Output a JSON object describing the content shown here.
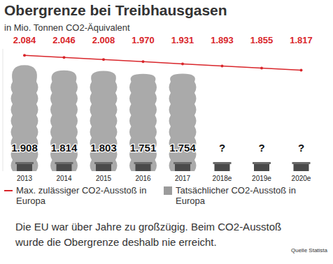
{
  "chart_data": {
    "type": "bar",
    "title": "Obergrenze bei Treibhausgasen",
    "subtitle": "in Mio. Tonnen CO2-Äquivalent",
    "categories": [
      "2013",
      "2014",
      "2015",
      "2016",
      "2017",
      "2018e",
      "2019e",
      "2020e"
    ],
    "series": [
      {
        "name": "Max. zulässiger CO2-Ausstoß in Europa",
        "type": "line",
        "color": "#d9262b",
        "marker": "circle",
        "values": [
          2084,
          2046,
          2008,
          1970,
          1931,
          1893,
          1855,
          1817
        ],
        "value_labels": [
          "2.084",
          "2.046",
          "2.008",
          "1.970",
          "1.931",
          "1.893",
          "1.855",
          "1.817"
        ]
      },
      {
        "name": "Tatsächlicher CO2-Ausstoß in Europa",
        "type": "bar",
        "color": "#9b9b9b",
        "values": [
          1908,
          1814,
          1803,
          1751,
          1754,
          null,
          null,
          null
        ],
        "value_labels": [
          "1.908",
          "1.814",
          "1.803",
          "1.751",
          "1.754",
          "?",
          "?",
          "?"
        ]
      }
    ],
    "ylim": [
      0,
      2200
    ],
    "data_labels": true,
    "tick_labels": "x",
    "legend": "bottom",
    "annotations": [
      "Die EU war über Jahre zu großzügig. Beim CO2-Ausstoß wurde die Obergrenze deshalb nie erreicht."
    ],
    "source": "Quelle Statista"
  }
}
